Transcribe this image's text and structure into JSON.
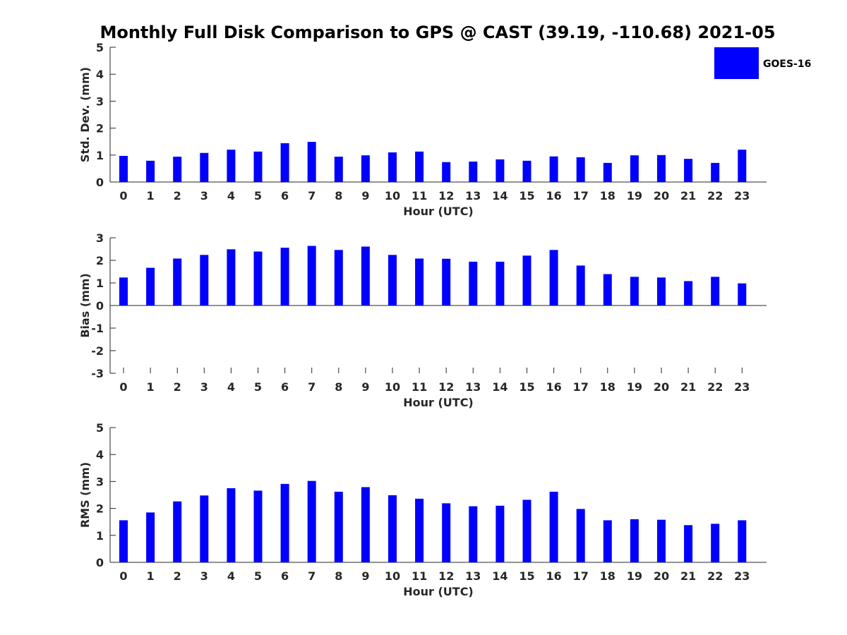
{
  "title": "Monthly Full Disk Comparison to GPS @ CAST (39.19, -110.68) 2021-05",
  "legend": {
    "label": "GOES-16",
    "color": "#0000ff",
    "placement": "top-right"
  },
  "chart_data": [
    {
      "type": "bar",
      "name": "std-dev",
      "xlabel": "Hour (UTC)",
      "ylabel": "Std. Dev. (mm)",
      "ylim": [
        0,
        5
      ],
      "yticks": [
        "0",
        "1",
        "2",
        "3",
        "4",
        "5"
      ],
      "categories": [
        "0",
        "1",
        "2",
        "3",
        "4",
        "5",
        "6",
        "7",
        "8",
        "9",
        "10",
        "11",
        "12",
        "13",
        "14",
        "15",
        "16",
        "17",
        "18",
        "19",
        "20",
        "21",
        "22",
        "23"
      ],
      "series": [
        {
          "name": "GOES-16",
          "color": "#0000ff",
          "values": [
            0.97,
            0.79,
            0.94,
            1.08,
            1.2,
            1.13,
            1.44,
            1.49,
            0.94,
            0.99,
            1.1,
            1.13,
            0.74,
            0.76,
            0.84,
            0.79,
            0.95,
            0.92,
            0.71,
            0.99,
            1.0,
            0.86,
            0.71,
            1.2
          ]
        }
      ]
    },
    {
      "type": "bar",
      "name": "bias",
      "xlabel": "Hour (UTC)",
      "ylabel": "Bias (mm)",
      "ylim": [
        -3,
        3
      ],
      "yticks": [
        "-3",
        "-2",
        "-1",
        "0",
        "1",
        "2",
        "3"
      ],
      "categories": [
        "0",
        "1",
        "2",
        "3",
        "4",
        "5",
        "6",
        "7",
        "8",
        "9",
        "10",
        "11",
        "12",
        "13",
        "14",
        "15",
        "16",
        "17",
        "18",
        "19",
        "20",
        "21",
        "22",
        "23"
      ],
      "series": [
        {
          "name": "GOES-16",
          "color": "#0000ff",
          "values": [
            1.24,
            1.67,
            2.08,
            2.24,
            2.49,
            2.39,
            2.56,
            2.64,
            2.46,
            2.61,
            2.24,
            2.08,
            2.07,
            1.94,
            1.94,
            2.21,
            2.46,
            1.77,
            1.39,
            1.27,
            1.24,
            1.08,
            1.27,
            0.98
          ]
        }
      ]
    },
    {
      "type": "bar",
      "name": "rms",
      "xlabel": "Hour (UTC)",
      "ylabel": "RMS (mm)",
      "ylim": [
        0,
        5
      ],
      "yticks": [
        "0",
        "1",
        "2",
        "3",
        "4",
        "5"
      ],
      "categories": [
        "0",
        "1",
        "2",
        "3",
        "4",
        "5",
        "6",
        "7",
        "8",
        "9",
        "10",
        "11",
        "12",
        "13",
        "14",
        "15",
        "16",
        "17",
        "18",
        "19",
        "20",
        "21",
        "22",
        "23"
      ],
      "series": [
        {
          "name": "GOES-16",
          "color": "#0000ff",
          "values": [
            1.56,
            1.85,
            2.26,
            2.48,
            2.75,
            2.66,
            2.91,
            3.02,
            2.62,
            2.79,
            2.49,
            2.36,
            2.19,
            2.08,
            2.1,
            2.32,
            2.62,
            1.98,
            1.56,
            1.6,
            1.58,
            1.38,
            1.43,
            1.56
          ]
        }
      ]
    }
  ]
}
